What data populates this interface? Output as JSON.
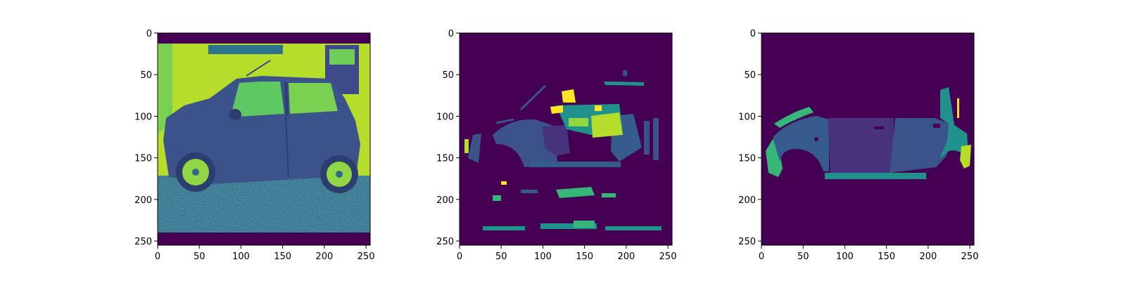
{
  "chart_data": [
    {
      "type": "heatmap",
      "content": "grayscale car photo rendered with viridis colormap",
      "colormap": "viridis",
      "xlim": [
        0,
        255
      ],
      "ylim": [
        255,
        0
      ],
      "x_ticks": [
        0,
        50,
        100,
        150,
        200,
        250
      ],
      "y_ticks": [
        0,
        50,
        100,
        150,
        200,
        250
      ],
      "grid": false
    },
    {
      "type": "heatmap",
      "content": "predicted part segmentation mask with scattered regions",
      "colormap": "viridis",
      "xlim": [
        0,
        255
      ],
      "ylim": [
        255,
        0
      ],
      "x_ticks": [
        0,
        50,
        100,
        150,
        200,
        250
      ],
      "y_ticks": [
        0,
        50,
        100,
        150,
        200,
        250
      ],
      "grid": false
    },
    {
      "type": "heatmap",
      "content": "ground-truth car part segmentation mask",
      "colormap": "viridis",
      "xlim": [
        0,
        255
      ],
      "ylim": [
        255,
        0
      ],
      "x_ticks": [
        0,
        50,
        100,
        150,
        200,
        250
      ],
      "y_ticks": [
        0,
        50,
        100,
        150,
        200,
        250
      ],
      "grid": false
    }
  ],
  "colors": {
    "background": "#440154",
    "dark_blue": "#3b528b",
    "indigo": "#46327e",
    "blue": "#365c8d",
    "teal": "#21918c",
    "green": "#35b779",
    "lime": "#90d743",
    "yellow": "#fde725",
    "yellow_green": "#b5de2b"
  }
}
